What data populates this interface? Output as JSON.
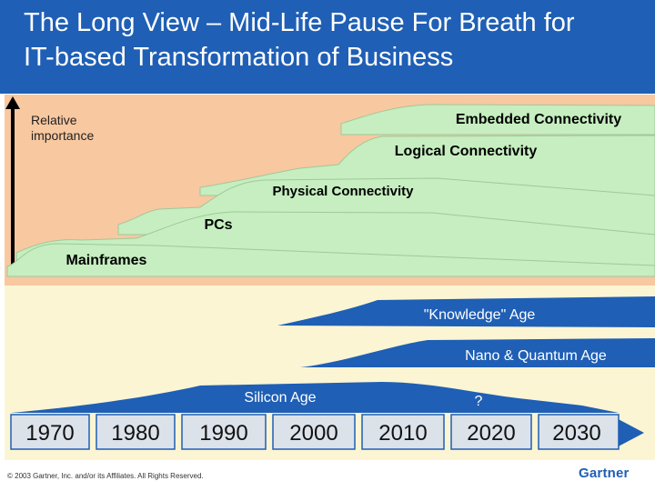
{
  "header": {
    "title": "The Long View – Mid-Life Pause For Breath for\nIT-based Transformation of Business"
  },
  "axis": {
    "label": "Relative\nimportance"
  },
  "connectivity_layers": [
    {
      "label": "Mainframes"
    },
    {
      "label": "PCs"
    },
    {
      "label": "Physical Connectivity"
    },
    {
      "label": "Logical Connectivity"
    },
    {
      "label": "Embedded Connectivity"
    }
  ],
  "ages": [
    {
      "label": "\"Knowledge\" Age"
    },
    {
      "label": "Nano & Quantum Age"
    },
    {
      "label": "Silicon Age"
    },
    {
      "label": "?"
    }
  ],
  "timeline": {
    "years": [
      "1970",
      "1980",
      "1990",
      "2000",
      "2010",
      "2020",
      "2030"
    ]
  },
  "footer": {
    "copyright": "© 2003 Gartner, Inc. and/or its Affiliates. All Rights Reserved.",
    "logo": "Gartner"
  },
  "colors": {
    "header_blue": "#1f5fb5",
    "upper_panel": "#f8c8a0",
    "lower_panel": "#fbf5d3",
    "layer_green": "#c6eec0",
    "age_blue": "#1f5fb5"
  }
}
